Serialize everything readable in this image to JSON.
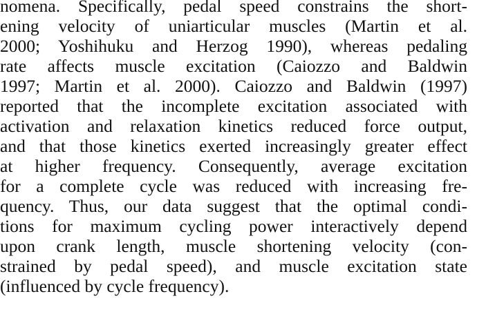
{
  "paragraph": {
    "lines": [
      "nomena. Specifically, pedal speed constrains the short-",
      "ening velocity of uniarticular muscles (Martin et al.",
      "2000; Yoshihuku and Herzog 1990), whereas pedaling",
      "rate affects muscle excitation (Caiozzo and Baldwin",
      "1997; Martin et al. 2000). Caiozzo and Baldwin (1997)",
      "reported that the incomplete excitation associated with",
      "activation and relaxation kinetics reduced force output,",
      "and that those kinetics exerted increasingly greater effect",
      "at higher frequency. Consequently, average excitation",
      "for a complete cycle was reduced with increasing fre-",
      "quency. Thus, our data suggest that the optimal condi-",
      "tions for maximum cycling power interactively depend",
      "upon crank length, muscle shortening velocity (con-",
      "strained by pedal speed), and muscle excitation state",
      "(influenced by cycle frequency)."
    ]
  }
}
